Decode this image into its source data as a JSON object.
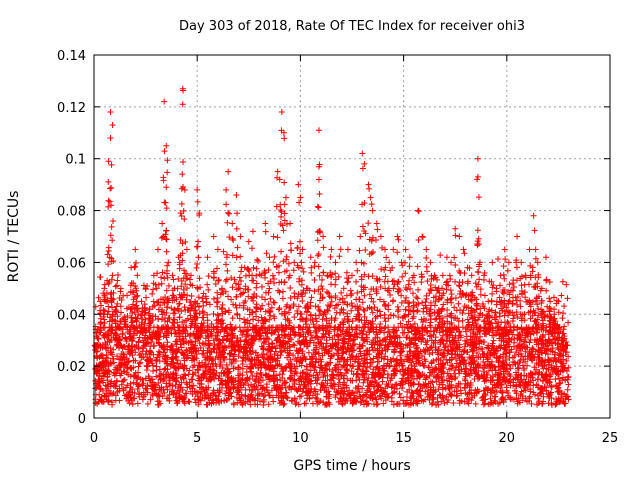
{
  "chart_data": {
    "type": "scatter",
    "title": "Day 303 of 2018, Rate Of TEC Index for receiver ohi3",
    "xlabel": "GPS time / hours",
    "ylabel": "ROTI / TECUs",
    "xlim": [
      0,
      25
    ],
    "ylim": [
      0,
      0.14
    ],
    "xticks": [
      0,
      5,
      10,
      15,
      20,
      25
    ],
    "yticks": [
      0,
      0.02,
      0.04,
      0.06,
      0.08,
      0.1,
      0.12,
      0.14
    ],
    "xtick_labels": [
      "0",
      "5",
      "10",
      "15",
      "20",
      "25"
    ],
    "ytick_labels": [
      "0",
      "0.02",
      "0.04",
      "0.06",
      "0.08",
      "0.1",
      "0.12",
      "0.14"
    ],
    "grid": true,
    "marker": "+",
    "series_color": "#ff0000",
    "series": [
      {
        "name": "",
        "x": [
          0.1,
          0.3,
          0.5,
          0.7,
          0.8,
          0.8,
          0.9,
          0.9,
          1.1,
          1.3,
          1.5,
          1.8,
          1.9,
          2.0,
          2.1,
          2.3,
          2.5,
          2.7,
          2.9,
          3.1,
          3.3,
          3.4,
          3.5,
          3.5,
          3.6,
          3.8,
          3.9,
          4.1,
          4.2,
          4.3,
          4.3,
          4.4,
          4.5,
          4.7,
          4.9,
          5.0,
          5.1,
          5.3,
          5.5,
          5.8,
          6.0,
          6.2,
          6.4,
          6.5,
          6.7,
          6.9,
          7.1,
          7.3,
          7.5,
          7.7,
          7.9,
          8.1,
          8.3,
          8.5,
          8.7,
          8.9,
          9.0,
          9.1,
          9.2,
          9.3,
          9.5,
          9.7,
          9.9,
          10.0,
          10.1,
          10.3,
          10.5,
          10.7,
          10.9,
          10.9,
          11.1,
          11.3,
          11.5,
          11.7,
          11.9,
          12.1,
          12.3,
          12.5,
          12.7,
          12.9,
          13.0,
          13.1,
          13.3,
          13.4,
          13.5,
          13.7,
          13.9,
          14.1,
          14.3,
          14.5,
          14.7,
          14.9,
          15.1,
          15.3,
          15.5,
          15.7,
          15.9,
          16.1,
          16.3,
          16.5,
          16.7,
          16.9,
          17.1,
          17.3,
          17.5,
          17.7,
          17.9,
          18.1,
          18.3,
          18.5,
          18.6,
          18.6,
          18.7,
          18.9,
          19.1,
          19.3,
          19.5,
          19.7,
          19.9,
          20.1,
          20.3,
          20.5,
          20.7,
          20.9,
          21.1,
          21.3,
          21.4,
          21.5,
          21.7,
          21.9,
          22.1,
          22.3,
          22.5,
          22.7,
          22.9
        ],
        "y": [
          0.028,
          0.045,
          0.05,
          0.099,
          0.118,
          0.108,
          0.113,
          0.055,
          0.043,
          0.05,
          0.038,
          0.058,
          0.052,
          0.065,
          0.055,
          0.045,
          0.05,
          0.042,
          0.055,
          0.065,
          0.075,
          0.122,
          0.105,
          0.089,
          0.06,
          0.055,
          0.05,
          0.062,
          0.079,
          0.127,
          0.121,
          0.088,
          0.065,
          0.055,
          0.045,
          0.088,
          0.079,
          0.048,
          0.062,
          0.07,
          0.065,
          0.05,
          0.088,
          0.095,
          0.075,
          0.086,
          0.07,
          0.058,
          0.068,
          0.072,
          0.061,
          0.055,
          0.075,
          0.062,
          0.07,
          0.095,
          0.092,
          0.118,
          0.11,
          0.085,
          0.075,
          0.06,
          0.09,
          0.085,
          0.065,
          0.05,
          0.062,
          0.06,
          0.111,
          0.092,
          0.07,
          0.055,
          0.065,
          0.06,
          0.07,
          0.05,
          0.065,
          0.055,
          0.06,
          0.07,
          0.102,
          0.098,
          0.09,
          0.085,
          0.08,
          0.075,
          0.07,
          0.065,
          0.06,
          0.065,
          0.07,
          0.06,
          0.065,
          0.062,
          0.055,
          0.08,
          0.07,
          0.065,
          0.06,
          0.055,
          0.05,
          0.055,
          0.062,
          0.06,
          0.073,
          0.07,
          0.065,
          0.058,
          0.055,
          0.052,
          0.1,
          0.093,
          0.06,
          0.055,
          0.045,
          0.06,
          0.05,
          0.055,
          0.065,
          0.06,
          0.052,
          0.07,
          0.06,
          0.055,
          0.065,
          0.078,
          0.065,
          0.06,
          0.05,
          0.062,
          0.045,
          0.04,
          0.035,
          0.03,
          0.028
        ],
        "baseline_range": [
          0.005,
          0.035
        ]
      }
    ]
  }
}
